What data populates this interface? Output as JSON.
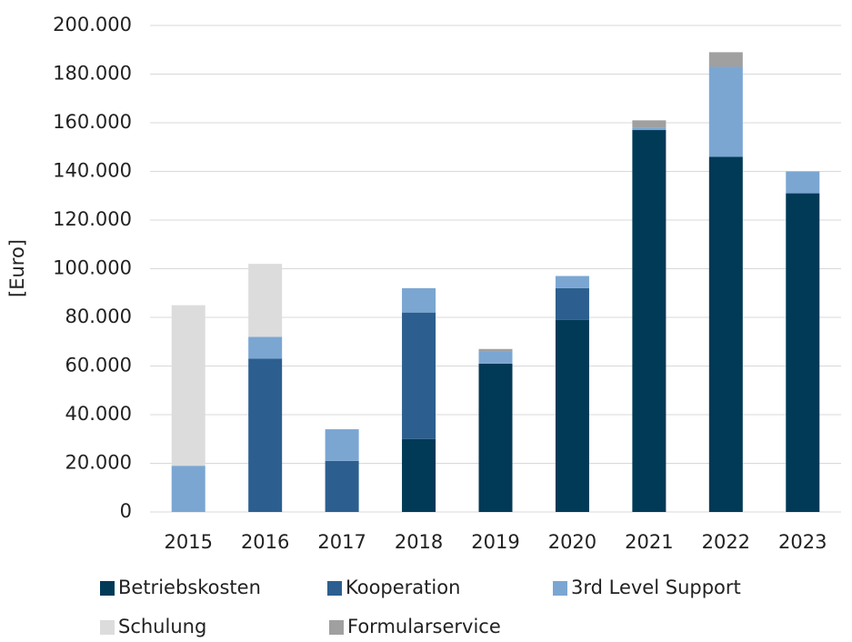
{
  "chart_data": {
    "type": "stacked_bar",
    "y_label": "[Euro]",
    "categories": [
      "2015",
      "2016",
      "2017",
      "2018",
      "2019",
      "2020",
      "2021",
      "2022",
      "2023"
    ],
    "series": [
      {
        "name": "Betriebskosten",
        "color": "#003a57",
        "values": [
          null,
          null,
          null,
          30000,
          61000,
          79000,
          157000,
          146000,
          131000
        ]
      },
      {
        "name": "Kooperation",
        "color": "#2c5f8f",
        "values": [
          null,
          63000,
          21000,
          52000,
          null,
          13000,
          null,
          null,
          null
        ]
      },
      {
        "name": "3rd Level Support",
        "color": "#7ba6d2",
        "values": [
          19000,
          9000,
          13000,
          10000,
          5000,
          5000,
          1000,
          37000,
          9000
        ]
      },
      {
        "name": "Schulung",
        "color": "#dcdcdc",
        "values": [
          66000,
          30000,
          null,
          null,
          null,
          null,
          null,
          null,
          null
        ]
      },
      {
        "name": "Formularservice",
        "color": "#a0a0a0",
        "values": [
          null,
          null,
          null,
          null,
          1000,
          null,
          3000,
          6000,
          null
        ]
      }
    ],
    "ylim": [
      0,
      200000
    ],
    "yticks": [
      0,
      {
        "value": 20000,
        "label": "20.000"
      },
      {
        "value": 40000,
        "label": "40.000"
      },
      {
        "value": 60000,
        "label": "60.000"
      },
      {
        "value": 80000,
        "label": "80.000"
      },
      {
        "value": 100000,
        "label": "100.000"
      },
      {
        "value": 120000,
        "label": "120.000"
      },
      {
        "value": 140000,
        "label": "140.000"
      },
      {
        "value": 160000,
        "label": "160.000"
      },
      {
        "value": 180000,
        "label": "180.000"
      },
      {
        "value": 200000,
        "label": "200.000"
      }
    ],
    "grid": true,
    "legend": "bottom"
  }
}
